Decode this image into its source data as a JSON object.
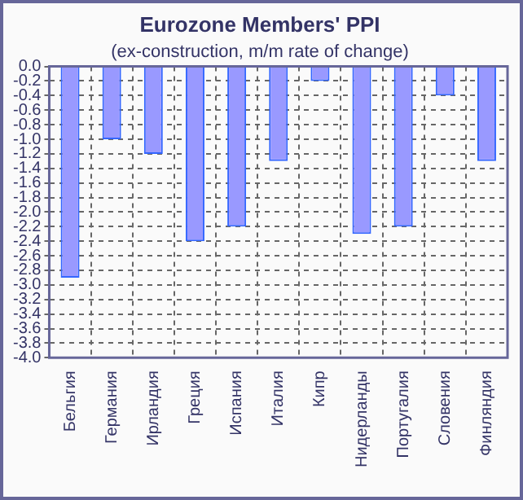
{
  "chart_data": {
    "type": "bar",
    "title": "Eurozone Members' PPI",
    "subtitle": "(ex-construction, m/m rate of change)",
    "categories": [
      "Бельгия",
      "Германия",
      "Ирландия",
      "Греция",
      "Испания",
      "Италия",
      "Кипр",
      "Нидерланды",
      "Португалия",
      "Словения",
      "Финляндия"
    ],
    "values": [
      -2.9,
      -1.0,
      -1.2,
      -2.4,
      -2.2,
      -1.3,
      -0.2,
      -2.3,
      -2.2,
      -0.4,
      -1.3
    ],
    "color": "#9999ff",
    "ylim": [
      -4.0,
      0
    ],
    "yticks": [
      {
        "value": 0,
        "label": "0.0"
      },
      {
        "value": -0.2,
        "label": "-0.2"
      },
      {
        "value": -0.4,
        "label": "-0.4"
      },
      {
        "value": -0.6,
        "label": "-0.6"
      },
      {
        "value": -0.8,
        "label": "-0.8"
      },
      {
        "value": -1.0,
        "label": "-1.0"
      },
      {
        "value": -1.2,
        "label": "-1.2"
      },
      {
        "value": -1.4,
        "label": "-1.4"
      },
      {
        "value": -1.6,
        "label": "-1.6"
      },
      {
        "value": -1.8,
        "label": "-1.8"
      },
      {
        "value": -2.0,
        "label": "-2.0"
      },
      {
        "value": -2.2,
        "label": "-2.2"
      },
      {
        "value": -2.4,
        "label": "-2.4"
      },
      {
        "value": -2.6,
        "label": "-2.6"
      },
      {
        "value": -2.8,
        "label": "-2.8"
      },
      {
        "value": -3.0,
        "label": "-3.0"
      },
      {
        "value": -3.2,
        "label": "-3.2"
      },
      {
        "value": -3.4,
        "label": "-3.4"
      },
      {
        "value": -3.6,
        "label": "-3.6"
      },
      {
        "value": -3.8,
        "label": "-3.8"
      },
      {
        "value": -4.0,
        "label": "-4.0"
      }
    ],
    "grid": true
  }
}
